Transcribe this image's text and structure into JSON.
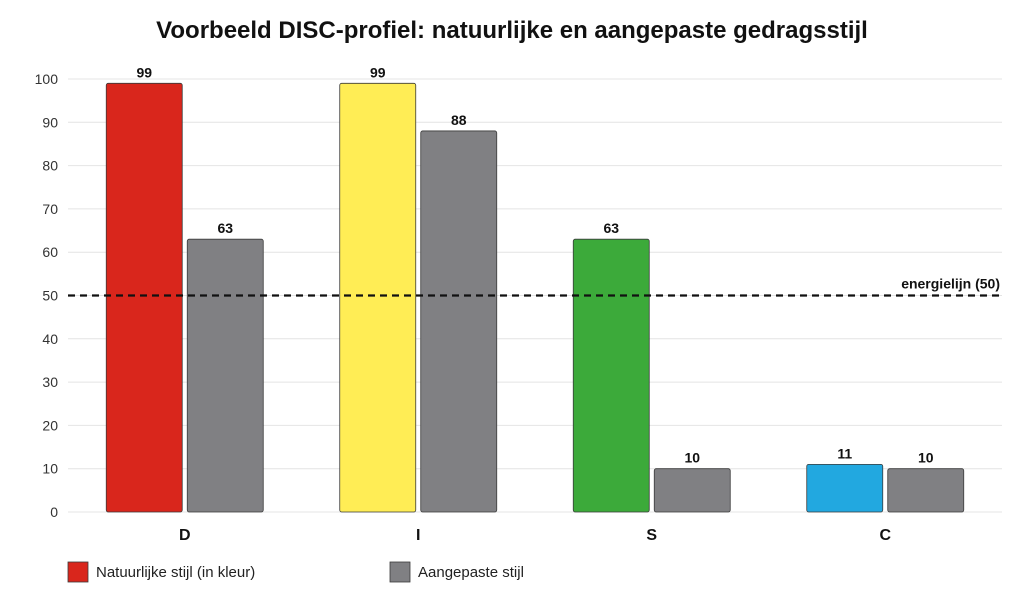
{
  "chart_data": {
    "type": "bar",
    "title": "Voorbeeld DISC-profiel: natuurlijke en aangepaste gedragsstijl",
    "xlabel": "",
    "ylabel": "",
    "ylim": [
      0,
      100
    ],
    "yticks": [
      0,
      10,
      20,
      30,
      40,
      50,
      60,
      70,
      80,
      90,
      100
    ],
    "grid": true,
    "categories": [
      "D",
      "I",
      "S",
      "C"
    ],
    "series": [
      {
        "name": "Natuurlijke stijl (in kleur)",
        "values": [
          99,
          99,
          63,
          11
        ],
        "colors": [
          "#d9261c",
          "#ffed55",
          "#3caa3a",
          "#22a8e0"
        ]
      },
      {
        "name": "Aangepaste stijl",
        "values": [
          63,
          88,
          10,
          10
        ],
        "colors": [
          "#808083",
          "#808083",
          "#808083",
          "#808083"
        ]
      }
    ],
    "reference_line": {
      "value": 50,
      "label": "energielijn (50)",
      "style": "dashed"
    },
    "legend": {
      "placement": "bottom-left",
      "swatch_color": "#d9261c",
      "swatch_color_2": "#808083"
    }
  }
}
